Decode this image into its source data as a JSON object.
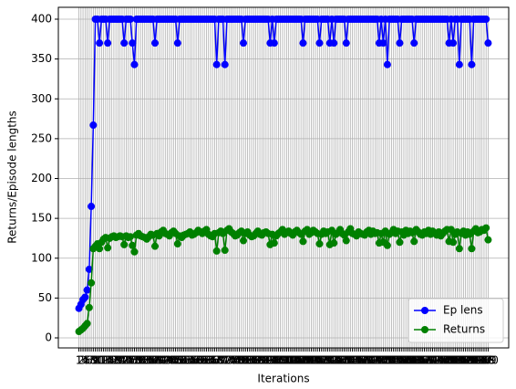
{
  "chart_data": {
    "type": "line",
    "x_label": "Iterations",
    "y_label": "Returns/Episode lengths",
    "x": [
      1,
      2,
      3,
      4,
      5,
      6,
      7,
      8,
      9,
      10,
      11,
      12,
      13,
      14,
      15,
      16,
      17,
      18,
      19,
      20,
      21,
      22,
      23,
      24,
      25,
      26,
      27,
      28,
      29,
      30,
      31,
      32,
      33,
      34,
      35,
      36,
      37,
      38,
      39,
      40,
      41,
      42,
      43,
      44,
      45,
      46,
      47,
      48,
      49,
      50,
      51,
      52,
      53,
      54,
      55,
      56,
      57,
      58,
      59,
      60,
      61,
      62,
      63,
      64,
      65,
      66,
      67,
      68,
      69,
      70,
      71,
      72,
      73,
      74,
      75,
      76,
      77,
      78,
      79,
      80,
      81,
      82,
      83,
      84,
      85,
      86,
      87,
      88,
      89,
      90,
      91,
      92,
      93,
      94,
      95,
      96,
      97,
      98,
      99,
      100,
      101,
      102,
      103,
      104,
      105,
      106,
      107,
      108,
      109,
      110,
      111,
      112,
      113,
      114,
      115,
      116,
      117,
      118,
      119,
      120,
      121,
      122,
      123,
      124,
      125,
      126,
      127,
      128,
      129,
      130,
      131,
      132,
      133,
      134,
      135,
      136,
      137,
      138,
      139,
      140,
      141,
      142,
      143,
      144,
      145,
      146,
      147,
      148,
      149,
      150,
      151,
      152,
      153,
      154,
      155,
      156,
      157,
      158,
      159,
      160,
      161,
      162,
      163,
      164,
      165,
      166,
      167,
      168,
      169,
      170,
      171,
      172,
      173,
      174,
      175,
      176,
      177,
      178,
      179,
      180,
      181,
      182,
      183,
      184,
      185,
      186,
      187,
      188,
      189,
      190,
      191,
      192,
      193,
      194,
      195,
      196,
      197,
      198,
      199,
      200
    ],
    "series": [
      {
        "name": "Ep lens",
        "color": "#0000ff",
        "values": [
          37,
          42,
          48,
          51,
          60,
          86,
          165,
          267,
          400,
          400,
          370,
          400,
          400,
          400,
          370,
          400,
          400,
          400,
          400,
          400,
          400,
          400,
          370,
          400,
          400,
          400,
          370,
          343,
          400,
          400,
          400,
          400,
          400,
          400,
          400,
          400,
          400,
          370,
          400,
          400,
          400,
          400,
          400,
          400,
          400,
          400,
          400,
          400,
          370,
          400,
          400,
          400,
          400,
          400,
          400,
          400,
          400,
          400,
          400,
          400,
          400,
          400,
          400,
          400,
          400,
          400,
          400,
          343,
          400,
          400,
          400,
          343,
          400,
          400,
          400,
          400,
          400,
          400,
          400,
          400,
          370,
          400,
          400,
          400,
          400,
          400,
          400,
          400,
          400,
          400,
          400,
          400,
          400,
          370,
          400,
          370,
          400,
          400,
          400,
          400,
          400,
          400,
          400,
          400,
          400,
          400,
          400,
          400,
          400,
          370,
          400,
          400,
          400,
          400,
          400,
          400,
          400,
          370,
          400,
          400,
          400,
          400,
          370,
          400,
          370,
          400,
          400,
          400,
          400,
          400,
          370,
          400,
          400,
          400,
          400,
          400,
          400,
          400,
          400,
          400,
          400,
          400,
          400,
          400,
          400,
          400,
          370,
          400,
          370,
          400,
          343,
          400,
          400,
          400,
          400,
          400,
          370,
          400,
          400,
          400,
          400,
          400,
          400,
          370,
          400,
          400,
          400,
          400,
          400,
          400,
          400,
          400,
          400,
          400,
          400,
          400,
          400,
          400,
          400,
          400,
          370,
          400,
          370,
          400,
          400,
          343,
          400,
          400,
          400,
          400,
          400,
          343,
          400,
          400,
          400,
          400,
          400,
          400,
          400,
          370
        ]
      },
      {
        "name": "Returns",
        "color": "#008000",
        "values": [
          8,
          10,
          12,
          15,
          18,
          38,
          69,
          112,
          115,
          118,
          112,
          120,
          124,
          126,
          113,
          125,
          127,
          128,
          126,
          127,
          128,
          127,
          117,
          128,
          126,
          127,
          116,
          108,
          129,
          131,
          128,
          127,
          126,
          124,
          127,
          130,
          129,
          115,
          131,
          128,
          133,
          135,
          131,
          130,
          128,
          132,
          134,
          131,
          118,
          128,
          126,
          129,
          130,
          131,
          133,
          129,
          130,
          132,
          135,
          133,
          131,
          134,
          136,
          130,
          128,
          127,
          131,
          109,
          132,
          134,
          131,
          110,
          135,
          137,
          133,
          131,
          128,
          129,
          132,
          134,
          122,
          131,
          133,
          129,
          127,
          128,
          131,
          134,
          130,
          129,
          132,
          133,
          131,
          117,
          130,
          119,
          128,
          131,
          133,
          136,
          130,
          132,
          134,
          131,
          129,
          133,
          135,
          132,
          130,
          121,
          134,
          136,
          130,
          132,
          135,
          133,
          131,
          118,
          130,
          134,
          131,
          133,
          117,
          135,
          119,
          130,
          132,
          136,
          131,
          129,
          122,
          133,
          137,
          131,
          130,
          128,
          133,
          131,
          130,
          129,
          133,
          135,
          130,
          134,
          131,
          132,
          119,
          131,
          120,
          134,
          116,
          130,
          132,
          136,
          131,
          134,
          120,
          133,
          129,
          135,
          131,
          134,
          132,
          121,
          136,
          133,
          130,
          129,
          133,
          131,
          135,
          130,
          134,
          131,
          129,
          133,
          128,
          131,
          134,
          136,
          121,
          136,
          120,
          130,
          133,
          112,
          131,
          134,
          129,
          133,
          130,
          112,
          134,
          137,
          132,
          133,
          136,
          135,
          138,
          123
        ]
      }
    ],
    "xlim": [
      -9,
      210
    ],
    "ylim": [
      -12.6,
      414.9
    ],
    "yticks": [
      0,
      50,
      100,
      150,
      200,
      250,
      300,
      350,
      400
    ],
    "grid": true,
    "legend": "lower right"
  }
}
